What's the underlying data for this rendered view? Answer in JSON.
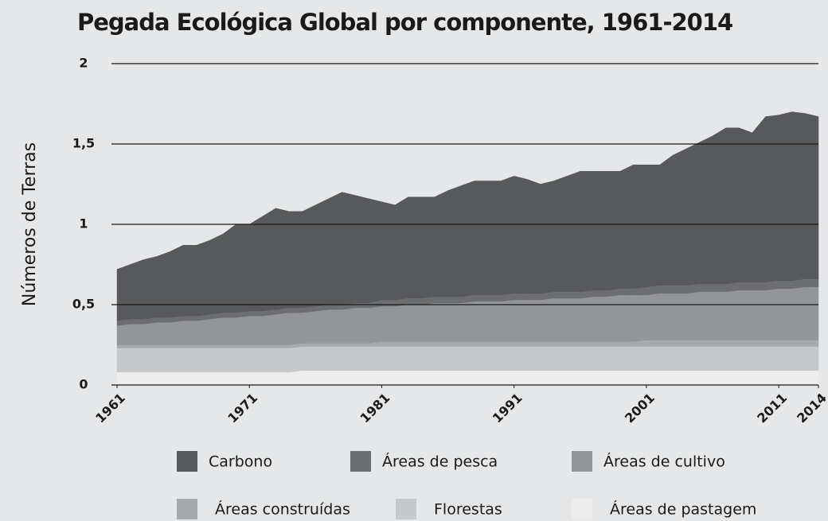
{
  "chart_data": {
    "type": "stacked_area",
    "title": "Pegada Ecológica Global por componente, 1961-2014",
    "ylabel": "Números de Terras",
    "x": [
      1961,
      1962,
      1963,
      1964,
      1965,
      1966,
      1967,
      1968,
      1969,
      1970,
      1971,
      1972,
      1973,
      1974,
      1975,
      1976,
      1977,
      1978,
      1979,
      1980,
      1981,
      1982,
      1983,
      1984,
      1985,
      1986,
      1987,
      1988,
      1989,
      1990,
      1991,
      1992,
      1993,
      1994,
      1995,
      1996,
      1997,
      1998,
      1999,
      2000,
      2001,
      2002,
      2003,
      2004,
      2005,
      2006,
      2007,
      2008,
      2009,
      2010,
      2011,
      2012,
      2013,
      2014
    ],
    "xlim": [
      1961,
      2014
    ],
    "xticks": [
      1961,
      1971,
      1981,
      1991,
      2001,
      2011,
      2014
    ],
    "ylim": [
      0,
      2
    ],
    "yticks": [
      0,
      {
        "value": 0.5,
        "label": "0,5"
      },
      1,
      {
        "value": 1.5,
        "label": "1,5"
      },
      2
    ],
    "grid": true,
    "series": [
      {
        "name": "Carbono",
        "color": "#58595b",
        "values": [
          0.32,
          0.34,
          0.37,
          0.38,
          0.41,
          0.44,
          0.44,
          0.46,
          0.49,
          0.55,
          0.54,
          0.59,
          0.63,
          0.6,
          0.6,
          0.63,
          0.66,
          0.7,
          0.67,
          0.65,
          0.61,
          0.59,
          0.63,
          0.63,
          0.62,
          0.66,
          0.69,
          0.71,
          0.71,
          0.71,
          0.73,
          0.71,
          0.68,
          0.69,
          0.72,
          0.75,
          0.74,
          0.74,
          0.73,
          0.77,
          0.76,
          0.75,
          0.81,
          0.85,
          0.88,
          0.92,
          0.97,
          0.96,
          0.93,
          1.03,
          1.03,
          1.05,
          1.03,
          1.01
        ]
      },
      {
        "name": "Áreas de pesca",
        "color": "#6d6e70",
        "values": [
          0.03,
          0.03,
          0.03,
          0.03,
          0.03,
          0.03,
          0.03,
          0.03,
          0.03,
          0.03,
          0.03,
          0.03,
          0.03,
          0.03,
          0.03,
          0.03,
          0.03,
          0.03,
          0.03,
          0.03,
          0.04,
          0.04,
          0.04,
          0.04,
          0.04,
          0.04,
          0.04,
          0.04,
          0.04,
          0.04,
          0.04,
          0.04,
          0.04,
          0.04,
          0.04,
          0.04,
          0.04,
          0.04,
          0.04,
          0.04,
          0.05,
          0.05,
          0.05,
          0.05,
          0.05,
          0.05,
          0.05,
          0.05,
          0.05,
          0.05,
          0.05,
          0.05,
          0.05,
          0.05
        ]
      },
      {
        "name": "Áreas de cultivo",
        "color": "#939598",
        "values": [
          0.12,
          0.13,
          0.13,
          0.14,
          0.14,
          0.15,
          0.15,
          0.16,
          0.17,
          0.17,
          0.18,
          0.18,
          0.19,
          0.2,
          0.19,
          0.2,
          0.21,
          0.21,
          0.22,
          0.22,
          0.22,
          0.22,
          0.23,
          0.23,
          0.24,
          0.24,
          0.24,
          0.25,
          0.25,
          0.25,
          0.26,
          0.26,
          0.26,
          0.27,
          0.27,
          0.27,
          0.28,
          0.28,
          0.29,
          0.29,
          0.28,
          0.29,
          0.29,
          0.29,
          0.3,
          0.3,
          0.3,
          0.31,
          0.31,
          0.31,
          0.32,
          0.32,
          0.33,
          0.33
        ]
      },
      {
        "name": "Áreas construídas",
        "color": "#a7a9ac",
        "values": [
          0.02,
          0.02,
          0.02,
          0.02,
          0.02,
          0.02,
          0.02,
          0.02,
          0.02,
          0.02,
          0.02,
          0.02,
          0.02,
          0.02,
          0.02,
          0.02,
          0.02,
          0.02,
          0.02,
          0.02,
          0.03,
          0.03,
          0.03,
          0.03,
          0.03,
          0.03,
          0.03,
          0.03,
          0.03,
          0.03,
          0.03,
          0.03,
          0.03,
          0.03,
          0.03,
          0.03,
          0.03,
          0.03,
          0.03,
          0.03,
          0.04,
          0.04,
          0.04,
          0.04,
          0.04,
          0.04,
          0.04,
          0.04,
          0.04,
          0.04,
          0.04,
          0.04,
          0.04,
          0.04
        ]
      },
      {
        "name": "Florestas",
        "color": "#c7c8ca",
        "values": [
          0.15,
          0.15,
          0.15,
          0.15,
          0.15,
          0.15,
          0.15,
          0.15,
          0.15,
          0.15,
          0.15,
          0.15,
          0.15,
          0.15,
          0.15,
          0.15,
          0.15,
          0.15,
          0.15,
          0.15,
          0.15,
          0.15,
          0.15,
          0.15,
          0.15,
          0.15,
          0.15,
          0.15,
          0.15,
          0.15,
          0.15,
          0.15,
          0.15,
          0.15,
          0.15,
          0.15,
          0.15,
          0.15,
          0.15,
          0.15,
          0.15,
          0.15,
          0.15,
          0.15,
          0.15,
          0.15,
          0.15,
          0.15,
          0.15,
          0.15,
          0.15,
          0.15,
          0.15,
          0.15
        ]
      },
      {
        "name": "Áreas de pastagem",
        "color": "#ededee",
        "values": [
          0.08,
          0.08,
          0.08,
          0.08,
          0.08,
          0.08,
          0.08,
          0.08,
          0.08,
          0.08,
          0.08,
          0.08,
          0.08,
          0.08,
          0.09,
          0.09,
          0.09,
          0.09,
          0.09,
          0.09,
          0.09,
          0.09,
          0.09,
          0.09,
          0.09,
          0.09,
          0.09,
          0.09,
          0.09,
          0.09,
          0.09,
          0.09,
          0.09,
          0.09,
          0.09,
          0.09,
          0.09,
          0.09,
          0.09,
          0.09,
          0.09,
          0.09,
          0.09,
          0.09,
          0.09,
          0.09,
          0.09,
          0.09,
          0.09,
          0.09,
          0.09,
          0.09,
          0.09,
          0.09
        ]
      }
    ]
  }
}
